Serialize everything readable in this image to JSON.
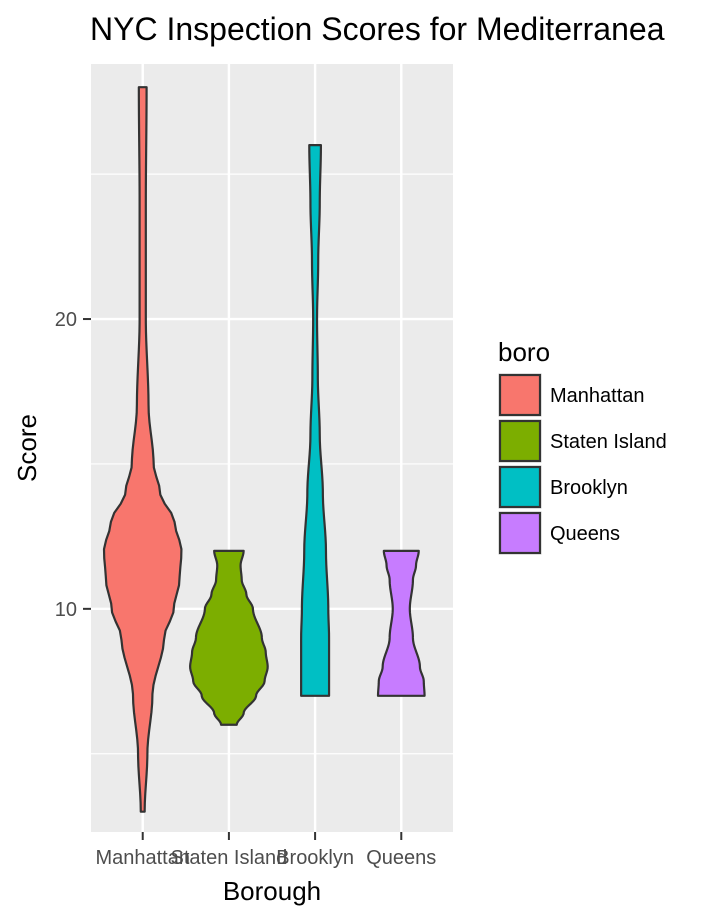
{
  "chart_data": {
    "type": "violin",
    "title": "NYC Inspection Scores for Mediterranea",
    "xlabel": "Borough",
    "ylabel": "Score",
    "ylim": [
      2.3,
      28.8
    ],
    "yticks": [
      10,
      20
    ],
    "grid": true,
    "categories": [
      "Manhattan",
      "Staten Island",
      "Brooklyn",
      "Queens"
    ],
    "legend": {
      "title": "boro",
      "position": "right",
      "entries": [
        "Manhattan",
        "Staten Island",
        "Brooklyn",
        "Queens"
      ]
    },
    "series": [
      {
        "category": "Manhattan",
        "color": "#F8766D",
        "min": 3,
        "max": 28,
        "profile": [
          [
            3,
            0.05
          ],
          [
            5,
            0.12
          ],
          [
            7,
            0.25
          ],
          [
            9,
            0.55
          ],
          [
            10,
            0.8
          ],
          [
            11,
            0.95
          ],
          [
            12,
            1.0
          ],
          [
            13,
            0.82
          ],
          [
            14,
            0.45
          ],
          [
            15,
            0.28
          ],
          [
            17,
            0.15
          ],
          [
            20,
            0.08
          ],
          [
            24,
            0.08
          ],
          [
            28,
            0.1
          ]
        ]
      },
      {
        "category": "Staten Island",
        "color": "#7CAE00",
        "min": 6,
        "max": 12,
        "profile": [
          [
            6,
            0.2
          ],
          [
            6.4,
            0.38
          ],
          [
            7,
            0.7
          ],
          [
            7.5,
            0.92
          ],
          [
            8,
            1.0
          ],
          [
            8.5,
            0.95
          ],
          [
            9,
            0.85
          ],
          [
            10,
            0.62
          ],
          [
            10.5,
            0.45
          ],
          [
            11,
            0.33
          ],
          [
            11.5,
            0.3
          ],
          [
            12,
            0.38
          ]
        ]
      },
      {
        "category": "Brooklyn",
        "color": "#00BFC4",
        "min": 7,
        "max": 26,
        "profile": [
          [
            7,
            0.36
          ],
          [
            8,
            0.36
          ],
          [
            9,
            0.36
          ],
          [
            10,
            0.34
          ],
          [
            12,
            0.28
          ],
          [
            14,
            0.2
          ],
          [
            16,
            0.12
          ],
          [
            18,
            0.07
          ],
          [
            20,
            0.05
          ],
          [
            22,
            0.08
          ],
          [
            24,
            0.12
          ],
          [
            26,
            0.15
          ]
        ]
      },
      {
        "category": "Queens",
        "color": "#C77CFF",
        "min": 7,
        "max": 12,
        "profile": [
          [
            7,
            0.6
          ],
          [
            7.5,
            0.58
          ],
          [
            8,
            0.48
          ],
          [
            9,
            0.3
          ],
          [
            10,
            0.22
          ],
          [
            11,
            0.3
          ],
          [
            11.5,
            0.38
          ],
          [
            12,
            0.45
          ]
        ]
      }
    ]
  }
}
